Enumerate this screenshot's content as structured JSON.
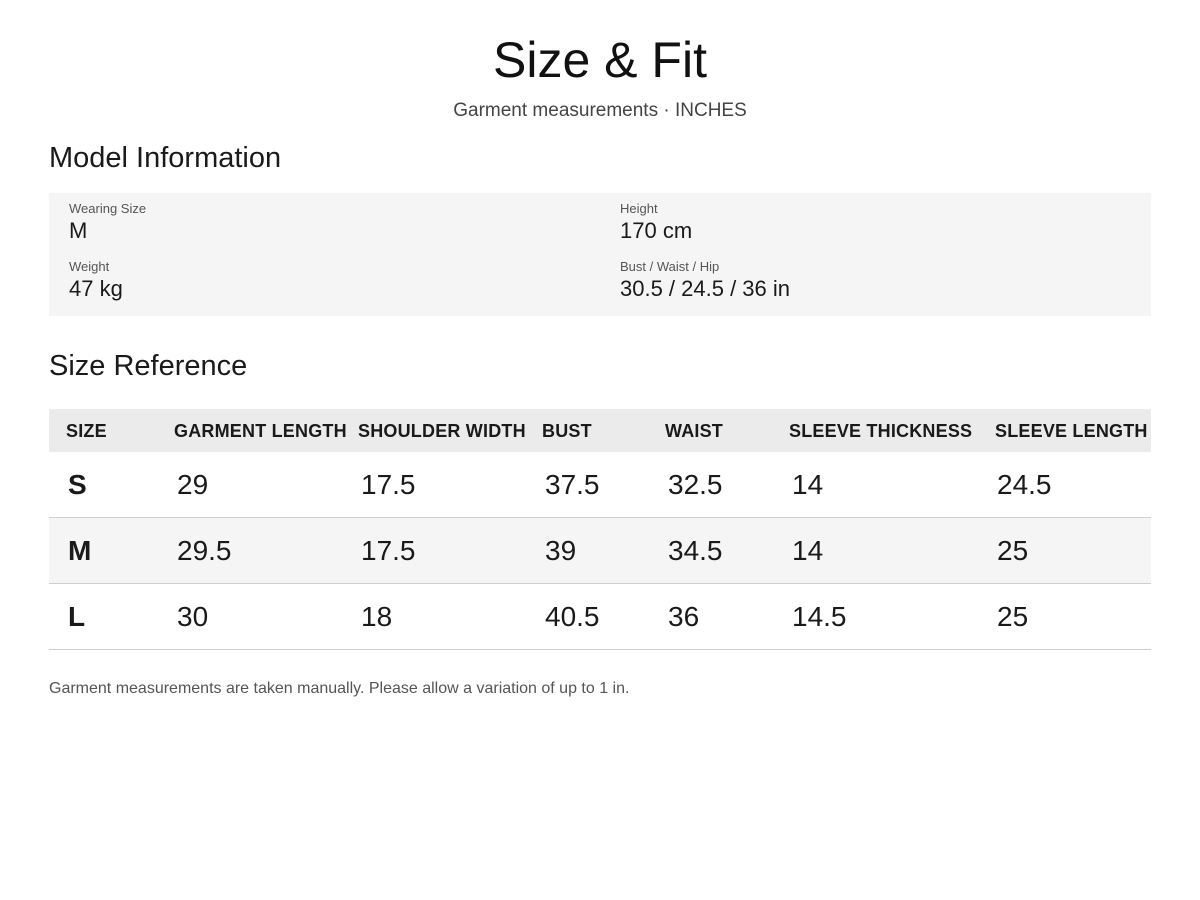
{
  "header": {
    "title": "Size & Fit",
    "subtitle": "Garment measurements · INCHES"
  },
  "model": {
    "heading": "Model Information",
    "fields": [
      {
        "label": "Wearing Size",
        "value": "M"
      },
      {
        "label": "Height",
        "value": "170 cm"
      },
      {
        "label": "Weight",
        "value": "47 kg"
      },
      {
        "label": "Bust / Waist / Hip",
        "value": "30.5 / 24.5 / 36 in"
      }
    ]
  },
  "size_reference": {
    "heading": "Size Reference",
    "columns": [
      "SIZE",
      "GARMENT LENGTH",
      "SHOULDER WIDTH",
      "BUST",
      "WAIST",
      "SLEEVE THICKNESS",
      "SLEEVE LENGTH"
    ],
    "rows": [
      [
        "S",
        "29",
        "17.5",
        "37.5",
        "32.5",
        "14",
        "24.5"
      ],
      [
        "M",
        "29.5",
        "17.5",
        "39",
        "34.5",
        "14",
        "25"
      ],
      [
        "L",
        "30",
        "18",
        "40.5",
        "36",
        "14.5",
        "25"
      ]
    ]
  },
  "footnote": "Garment measurements are taken manually. Please allow a variation of up to 1 in.",
  "colors": {
    "model_box_bg": "#f5f5f5",
    "table_header_bg": "#ebebeb",
    "row_alt_bg": "#f5f5f5",
    "row_divider": "#cfcfcf"
  }
}
